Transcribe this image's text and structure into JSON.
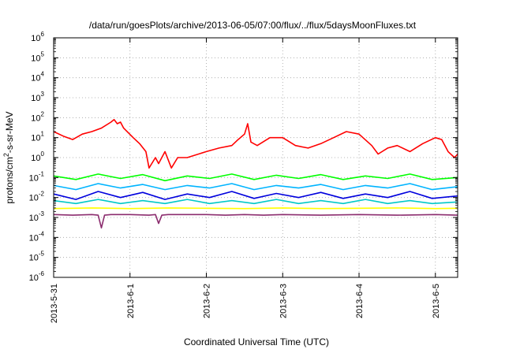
{
  "chart_data": {
    "type": "line",
    "title": "/data/run/goesPlots/archive/2013-06-05/07:00/flux/../flux/5daysMoonFluxes.txt",
    "xlabel": "Coordinated Universal Time (UTC)",
    "ylabel": {
      "prefix": "protons/cm",
      "sup": "2",
      "suffix": "-s-sr-MeV"
    },
    "yscale": "log",
    "ylim": [
      1e-06,
      1000000.0
    ],
    "y_ticks": [
      {
        "value": 1e-06,
        "base": "10",
        "exp": "-6"
      },
      {
        "value": 1e-05,
        "base": "10",
        "exp": "-5"
      },
      {
        "value": 0.0001,
        "base": "10",
        "exp": "-4"
      },
      {
        "value": 0.001,
        "base": "10",
        "exp": "-3"
      },
      {
        "value": 0.01,
        "base": "10",
        "exp": "-2"
      },
      {
        "value": 0.1,
        "base": "10",
        "exp": "-1"
      },
      {
        "value": 1,
        "base": "10",
        "exp": "0"
      },
      {
        "value": 10.0,
        "base": "10",
        "exp": "1"
      },
      {
        "value": 100.0,
        "base": "10",
        "exp": "2"
      },
      {
        "value": 1000.0,
        "base": "10",
        "exp": "3"
      },
      {
        "value": 10000.0,
        "base": "10",
        "exp": "4"
      },
      {
        "value": 100000.0,
        "base": "10",
        "exp": "5"
      },
      {
        "value": 1000000.0,
        "base": "10",
        "exp": "6"
      }
    ],
    "xlim": [
      "2013-05-31T00:00",
      "2013-06-05T07:00"
    ],
    "x_ticks": [
      "2013-5-31",
      "2013-6-1",
      "2013-6-2",
      "2013-6-3",
      "2013-6-4",
      "2013-6-5"
    ],
    "x_tick_values": [
      "2013-05-31T00:00",
      "2013-06-01T00:00",
      "2013-06-02T00:00",
      "2013-06-03T00:00",
      "2013-06-04T00:00",
      "2013-06-05T00:00"
    ],
    "grid": true,
    "legend": "none",
    "series": [
      {
        "color": "#ff0000",
        "x": [
          "2013-05-31T00:00",
          "2013-05-31T03:00",
          "2013-05-31T06:00",
          "2013-05-31T09:00",
          "2013-05-31T12:00",
          "2013-05-31T15:00",
          "2013-05-31T18:00",
          "2013-05-31T19:00",
          "2013-05-31T20:00",
          "2013-05-31T21:00",
          "2013-05-31T22:00",
          "2013-06-01T01:00",
          "2013-06-01T03:00",
          "2013-06-01T05:00",
          "2013-06-01T06:00",
          "2013-06-01T08:00",
          "2013-06-01T09:00",
          "2013-06-01T11:00",
          "2013-06-01T13:00",
          "2013-06-01T15:00",
          "2013-06-01T18:00",
          "2013-06-02T00:00",
          "2013-06-02T04:00",
          "2013-06-02T08:00",
          "2013-06-02T10:00",
          "2013-06-02T12:00",
          "2013-06-02T13:00",
          "2013-06-02T14:00",
          "2013-06-02T16:00",
          "2013-06-02T20:00",
          "2013-06-03T00:00",
          "2013-06-03T04:00",
          "2013-06-03T08:00",
          "2013-06-03T12:00",
          "2013-06-03T16:00",
          "2013-06-03T20:00",
          "2013-06-04T00:00",
          "2013-06-04T04:00",
          "2013-06-04T06:00",
          "2013-06-04T09:00",
          "2013-06-04T12:00",
          "2013-06-04T16:00",
          "2013-06-04T20:00",
          "2013-06-05T00:00",
          "2013-06-05T02:00",
          "2013-06-05T04:00",
          "2013-06-05T06:00",
          "2013-06-05T07:00"
        ],
        "values": [
          20,
          12,
          8,
          15,
          20,
          30,
          60,
          80,
          50,
          60,
          30,
          10,
          5,
          2,
          0.3,
          1,
          0.5,
          2,
          0.3,
          1,
          1,
          2,
          3,
          4,
          8,
          15,
          50,
          6,
          4,
          10,
          10,
          4,
          3,
          5,
          10,
          20,
          15,
          4,
          1.5,
          3,
          4,
          2,
          5,
          10,
          8,
          2,
          1,
          1.5
        ]
      },
      {
        "color": "#00ff00",
        "x": [
          "2013-05-31T00:00",
          "2013-05-31T07:00",
          "2013-05-31T14:00",
          "2013-05-31T21:00",
          "2013-06-01T04:00",
          "2013-06-01T11:00",
          "2013-06-01T18:00",
          "2013-06-02T01:00",
          "2013-06-02T08:00",
          "2013-06-02T15:00",
          "2013-06-02T22:00",
          "2013-06-03T05:00",
          "2013-06-03T12:00",
          "2013-06-03T19:00",
          "2013-06-04T02:00",
          "2013-06-04T09:00",
          "2013-06-04T16:00",
          "2013-06-04T23:00",
          "2013-06-05T07:00"
        ],
        "values": [
          0.12,
          0.08,
          0.15,
          0.09,
          0.14,
          0.07,
          0.12,
          0.09,
          0.15,
          0.08,
          0.13,
          0.09,
          0.14,
          0.08,
          0.12,
          0.09,
          0.15,
          0.08,
          0.1
        ]
      },
      {
        "color": "#00b4ff",
        "x": [
          "2013-05-31T00:00",
          "2013-05-31T07:00",
          "2013-05-31T14:00",
          "2013-05-31T21:00",
          "2013-06-01T04:00",
          "2013-06-01T11:00",
          "2013-06-01T18:00",
          "2013-06-02T01:00",
          "2013-06-02T08:00",
          "2013-06-02T15:00",
          "2013-06-02T22:00",
          "2013-06-03T05:00",
          "2013-06-03T12:00",
          "2013-06-03T19:00",
          "2013-06-04T02:00",
          "2013-06-04T09:00",
          "2013-06-04T16:00",
          "2013-06-04T23:00",
          "2013-06-05T07:00"
        ],
        "values": [
          0.04,
          0.025,
          0.05,
          0.03,
          0.045,
          0.025,
          0.04,
          0.03,
          0.05,
          0.025,
          0.04,
          0.03,
          0.045,
          0.025,
          0.04,
          0.03,
          0.05,
          0.025,
          0.035
        ]
      },
      {
        "color": "#0000dd",
        "x": [
          "2013-05-31T00:00",
          "2013-05-31T07:00",
          "2013-05-31T14:00",
          "2013-05-31T21:00",
          "2013-06-01T04:00",
          "2013-06-01T11:00",
          "2013-06-01T18:00",
          "2013-06-02T01:00",
          "2013-06-02T08:00",
          "2013-06-02T15:00",
          "2013-06-02T22:00",
          "2013-06-03T05:00",
          "2013-06-03T12:00",
          "2013-06-03T19:00",
          "2013-06-04T02:00",
          "2013-06-04T09:00",
          "2013-06-04T16:00",
          "2013-06-04T23:00",
          "2013-06-05T07:00"
        ],
        "values": [
          0.015,
          0.008,
          0.02,
          0.01,
          0.018,
          0.008,
          0.015,
          0.01,
          0.02,
          0.009,
          0.016,
          0.01,
          0.018,
          0.009,
          0.015,
          0.01,
          0.02,
          0.009,
          0.012
        ]
      },
      {
        "color": "#00c8c8",
        "x": [
          "2013-05-31T00:00",
          "2013-05-31T07:00",
          "2013-05-31T14:00",
          "2013-05-31T21:00",
          "2013-06-01T04:00",
          "2013-06-01T11:00",
          "2013-06-01T18:00",
          "2013-06-02T01:00",
          "2013-06-02T08:00",
          "2013-06-02T15:00",
          "2013-06-02T22:00",
          "2013-06-03T05:00",
          "2013-06-03T12:00",
          "2013-06-03T19:00",
          "2013-06-04T02:00",
          "2013-06-04T09:00",
          "2013-06-04T16:00",
          "2013-06-04T23:00",
          "2013-06-05T07:00"
        ],
        "values": [
          0.007,
          0.005,
          0.008,
          0.005,
          0.007,
          0.005,
          0.008,
          0.005,
          0.007,
          0.005,
          0.008,
          0.005,
          0.007,
          0.005,
          0.008,
          0.005,
          0.007,
          0.005,
          0.006
        ]
      },
      {
        "color": "#ffff00",
        "x": [
          "2013-05-31T00:00",
          "2013-05-31T12:00",
          "2013-06-01T00:00",
          "2013-06-01T12:00",
          "2013-06-02T00:00",
          "2013-06-02T12:00",
          "2013-06-03T00:00",
          "2013-06-03T12:00",
          "2013-06-04T00:00",
          "2013-06-04T12:00",
          "2013-06-05T00:00",
          "2013-06-05T07:00"
        ],
        "values": [
          0.0028,
          0.003,
          0.0028,
          0.003,
          0.0029,
          0.0028,
          0.003,
          0.0028,
          0.0029,
          0.003,
          0.0028,
          0.0029
        ]
      },
      {
        "color": "#8b2c6e",
        "x": [
          "2013-05-31T00:00",
          "2013-05-31T06:00",
          "2013-05-31T12:00",
          "2013-05-31T14:00",
          "2013-05-31T15:00",
          "2013-05-31T16:00",
          "2013-05-31T18:00",
          "2013-06-01T00:00",
          "2013-06-01T06:00",
          "2013-06-01T08:00",
          "2013-06-01T09:00",
          "2013-06-01T10:00",
          "2013-06-01T12:00",
          "2013-06-02T00:00",
          "2013-06-02T06:00",
          "2013-06-02T12:00",
          "2013-06-02T18:00",
          "2013-06-03T00:00",
          "2013-06-03T12:00",
          "2013-06-04T00:00",
          "2013-06-04T12:00",
          "2013-06-05T00:00",
          "2013-06-05T07:00"
        ],
        "values": [
          0.0014,
          0.0013,
          0.0014,
          0.0013,
          0.0003,
          0.0013,
          0.0014,
          0.0014,
          0.0013,
          0.0014,
          0.0005,
          0.0013,
          0.0014,
          0.0014,
          0.0013,
          0.0014,
          0.0013,
          0.0014,
          0.0013,
          0.0014,
          0.0013,
          0.0014,
          0.0013
        ]
      }
    ]
  }
}
